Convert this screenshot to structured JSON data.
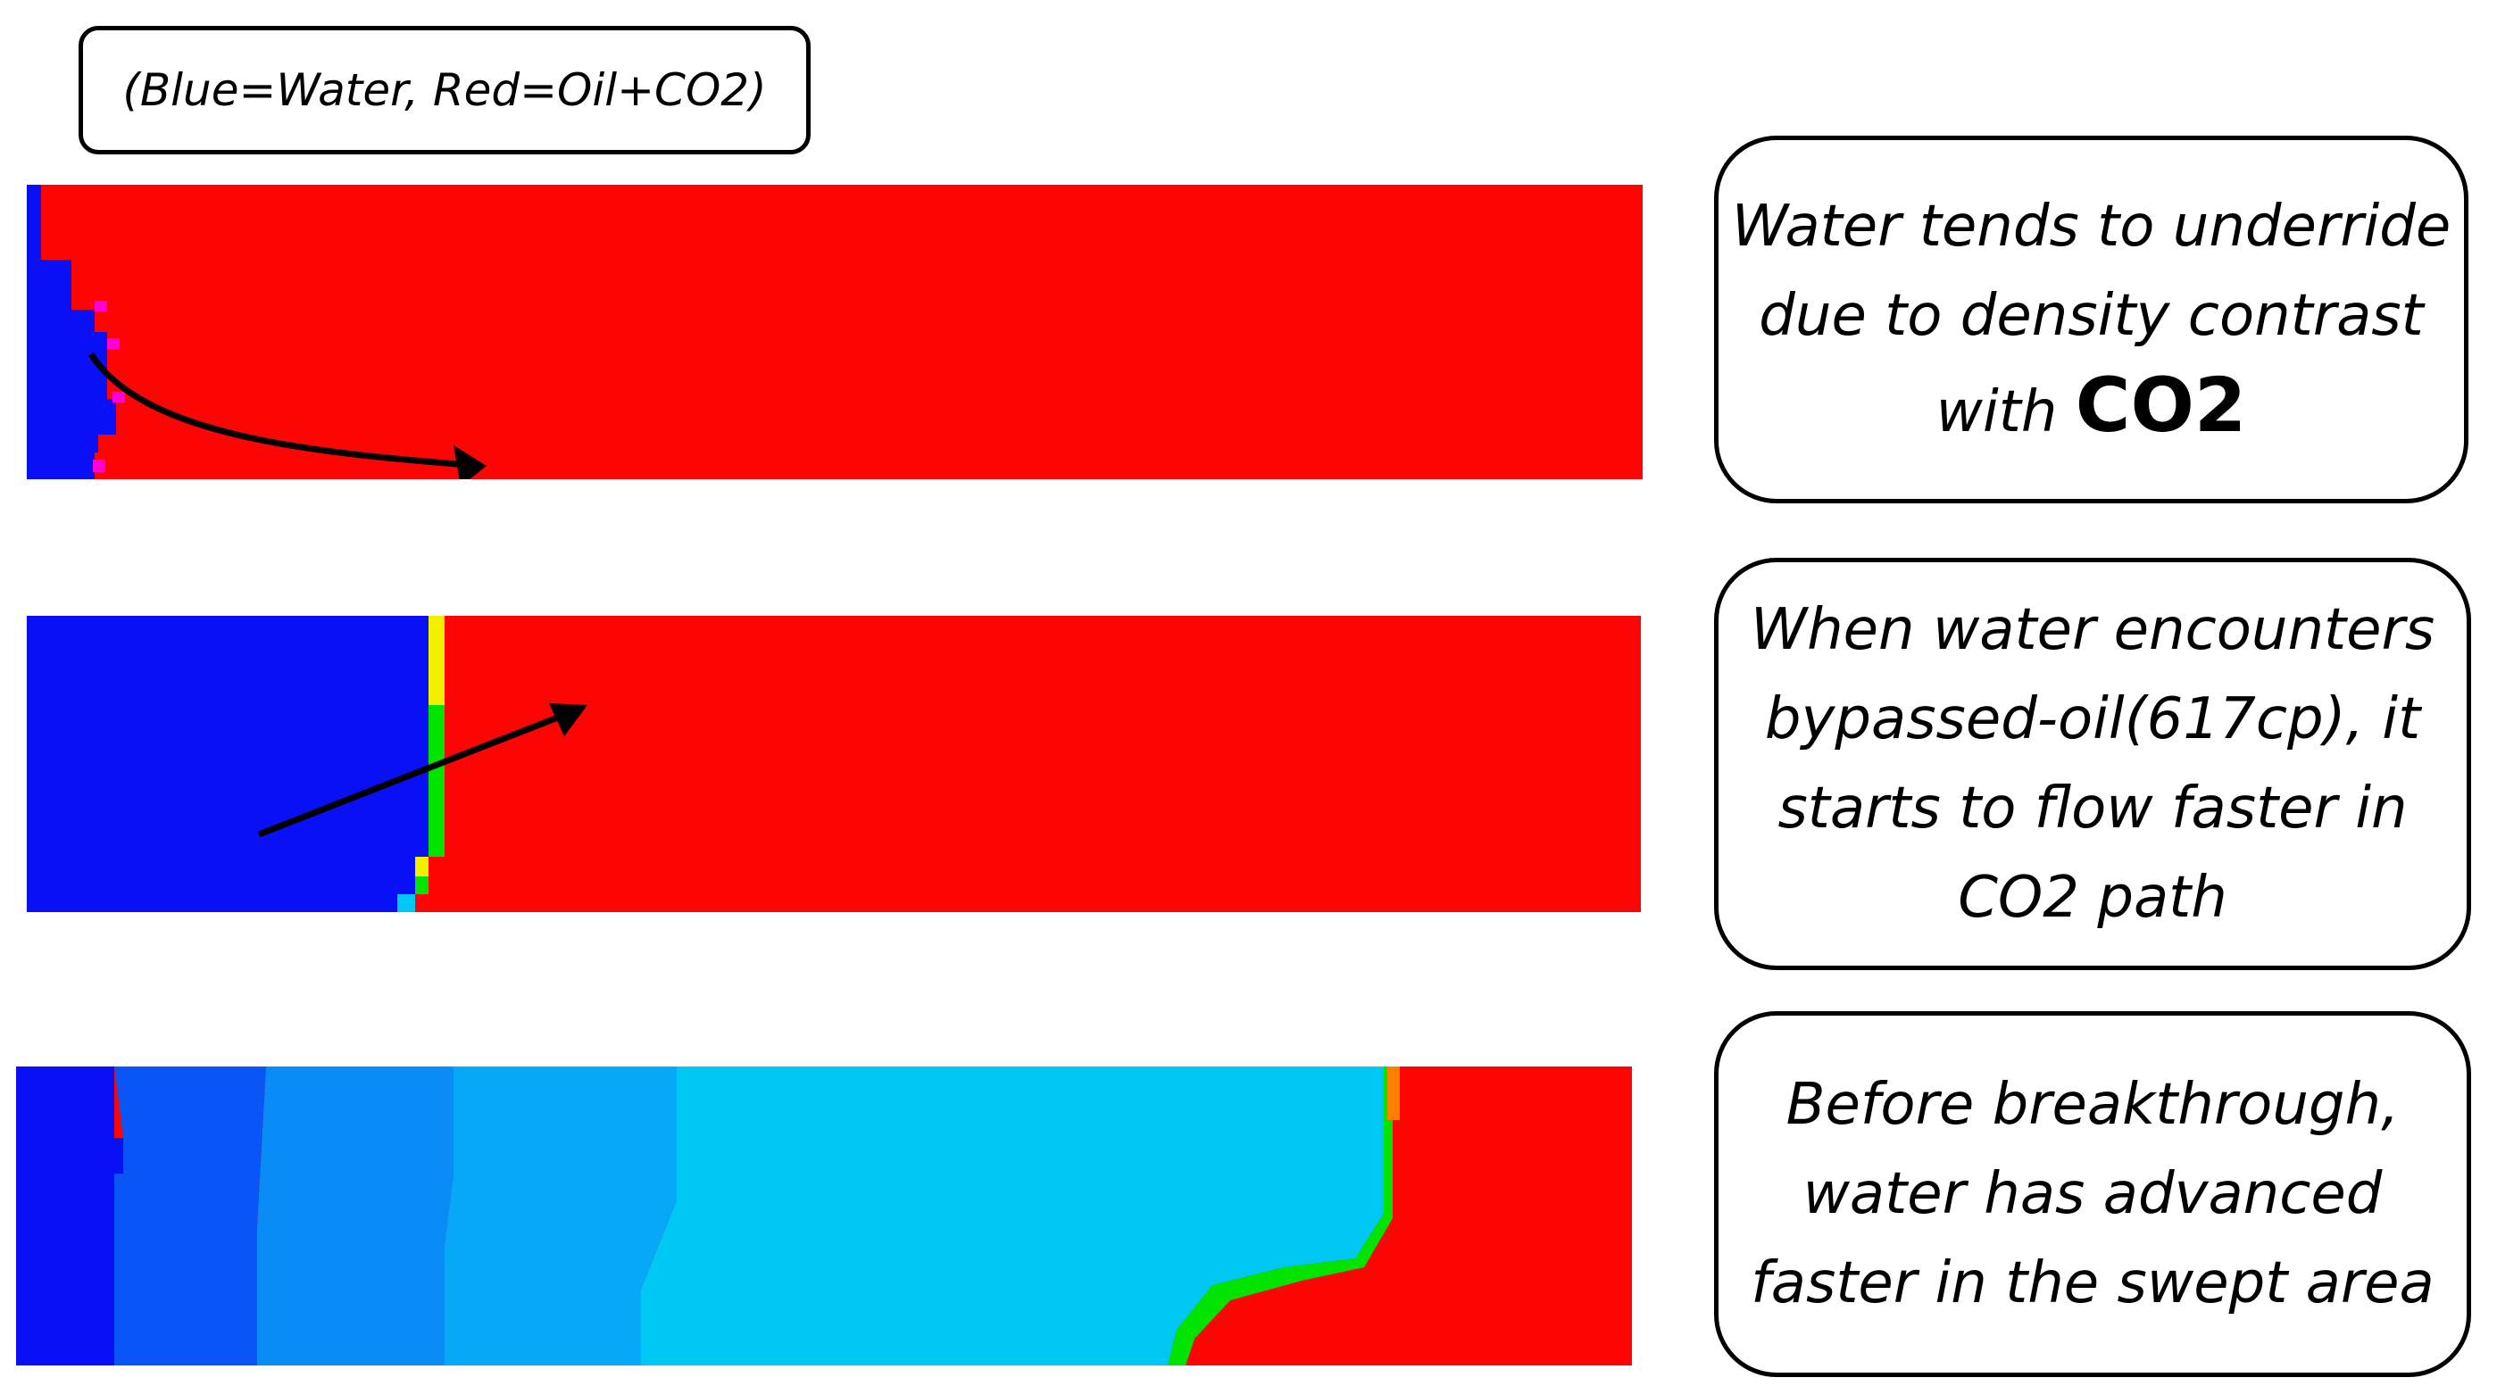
{
  "legend": {
    "text": "(Blue=Water, Red=Oil+CO2)"
  },
  "colors": {
    "water_dark": "#0a10f5",
    "water_mid": "#0a55f5",
    "water_light": "#0a8cf7",
    "water_lighter": "#08a8f8",
    "water_cyan": "#00c8f5",
    "oil": "#fd0505",
    "magenta": "#ff00d8",
    "yellow": "#f0f000",
    "green": "#00e400",
    "orange": "#ff8000"
  },
  "notes": [
    {
      "lines": [
        "Water tends to underride",
        "due to density contrast"
      ],
      "last_prefix": "with ",
      "last_bold": "CO2"
    },
    {
      "lines": [
        "When water encounters",
        "bypassed-oil(617cp), it",
        "starts to flow faster in",
        "CO2 path"
      ]
    },
    {
      "lines": [
        "Before breakthrough,",
        "water has advanced",
        "faster in the swept area"
      ]
    }
  ]
}
